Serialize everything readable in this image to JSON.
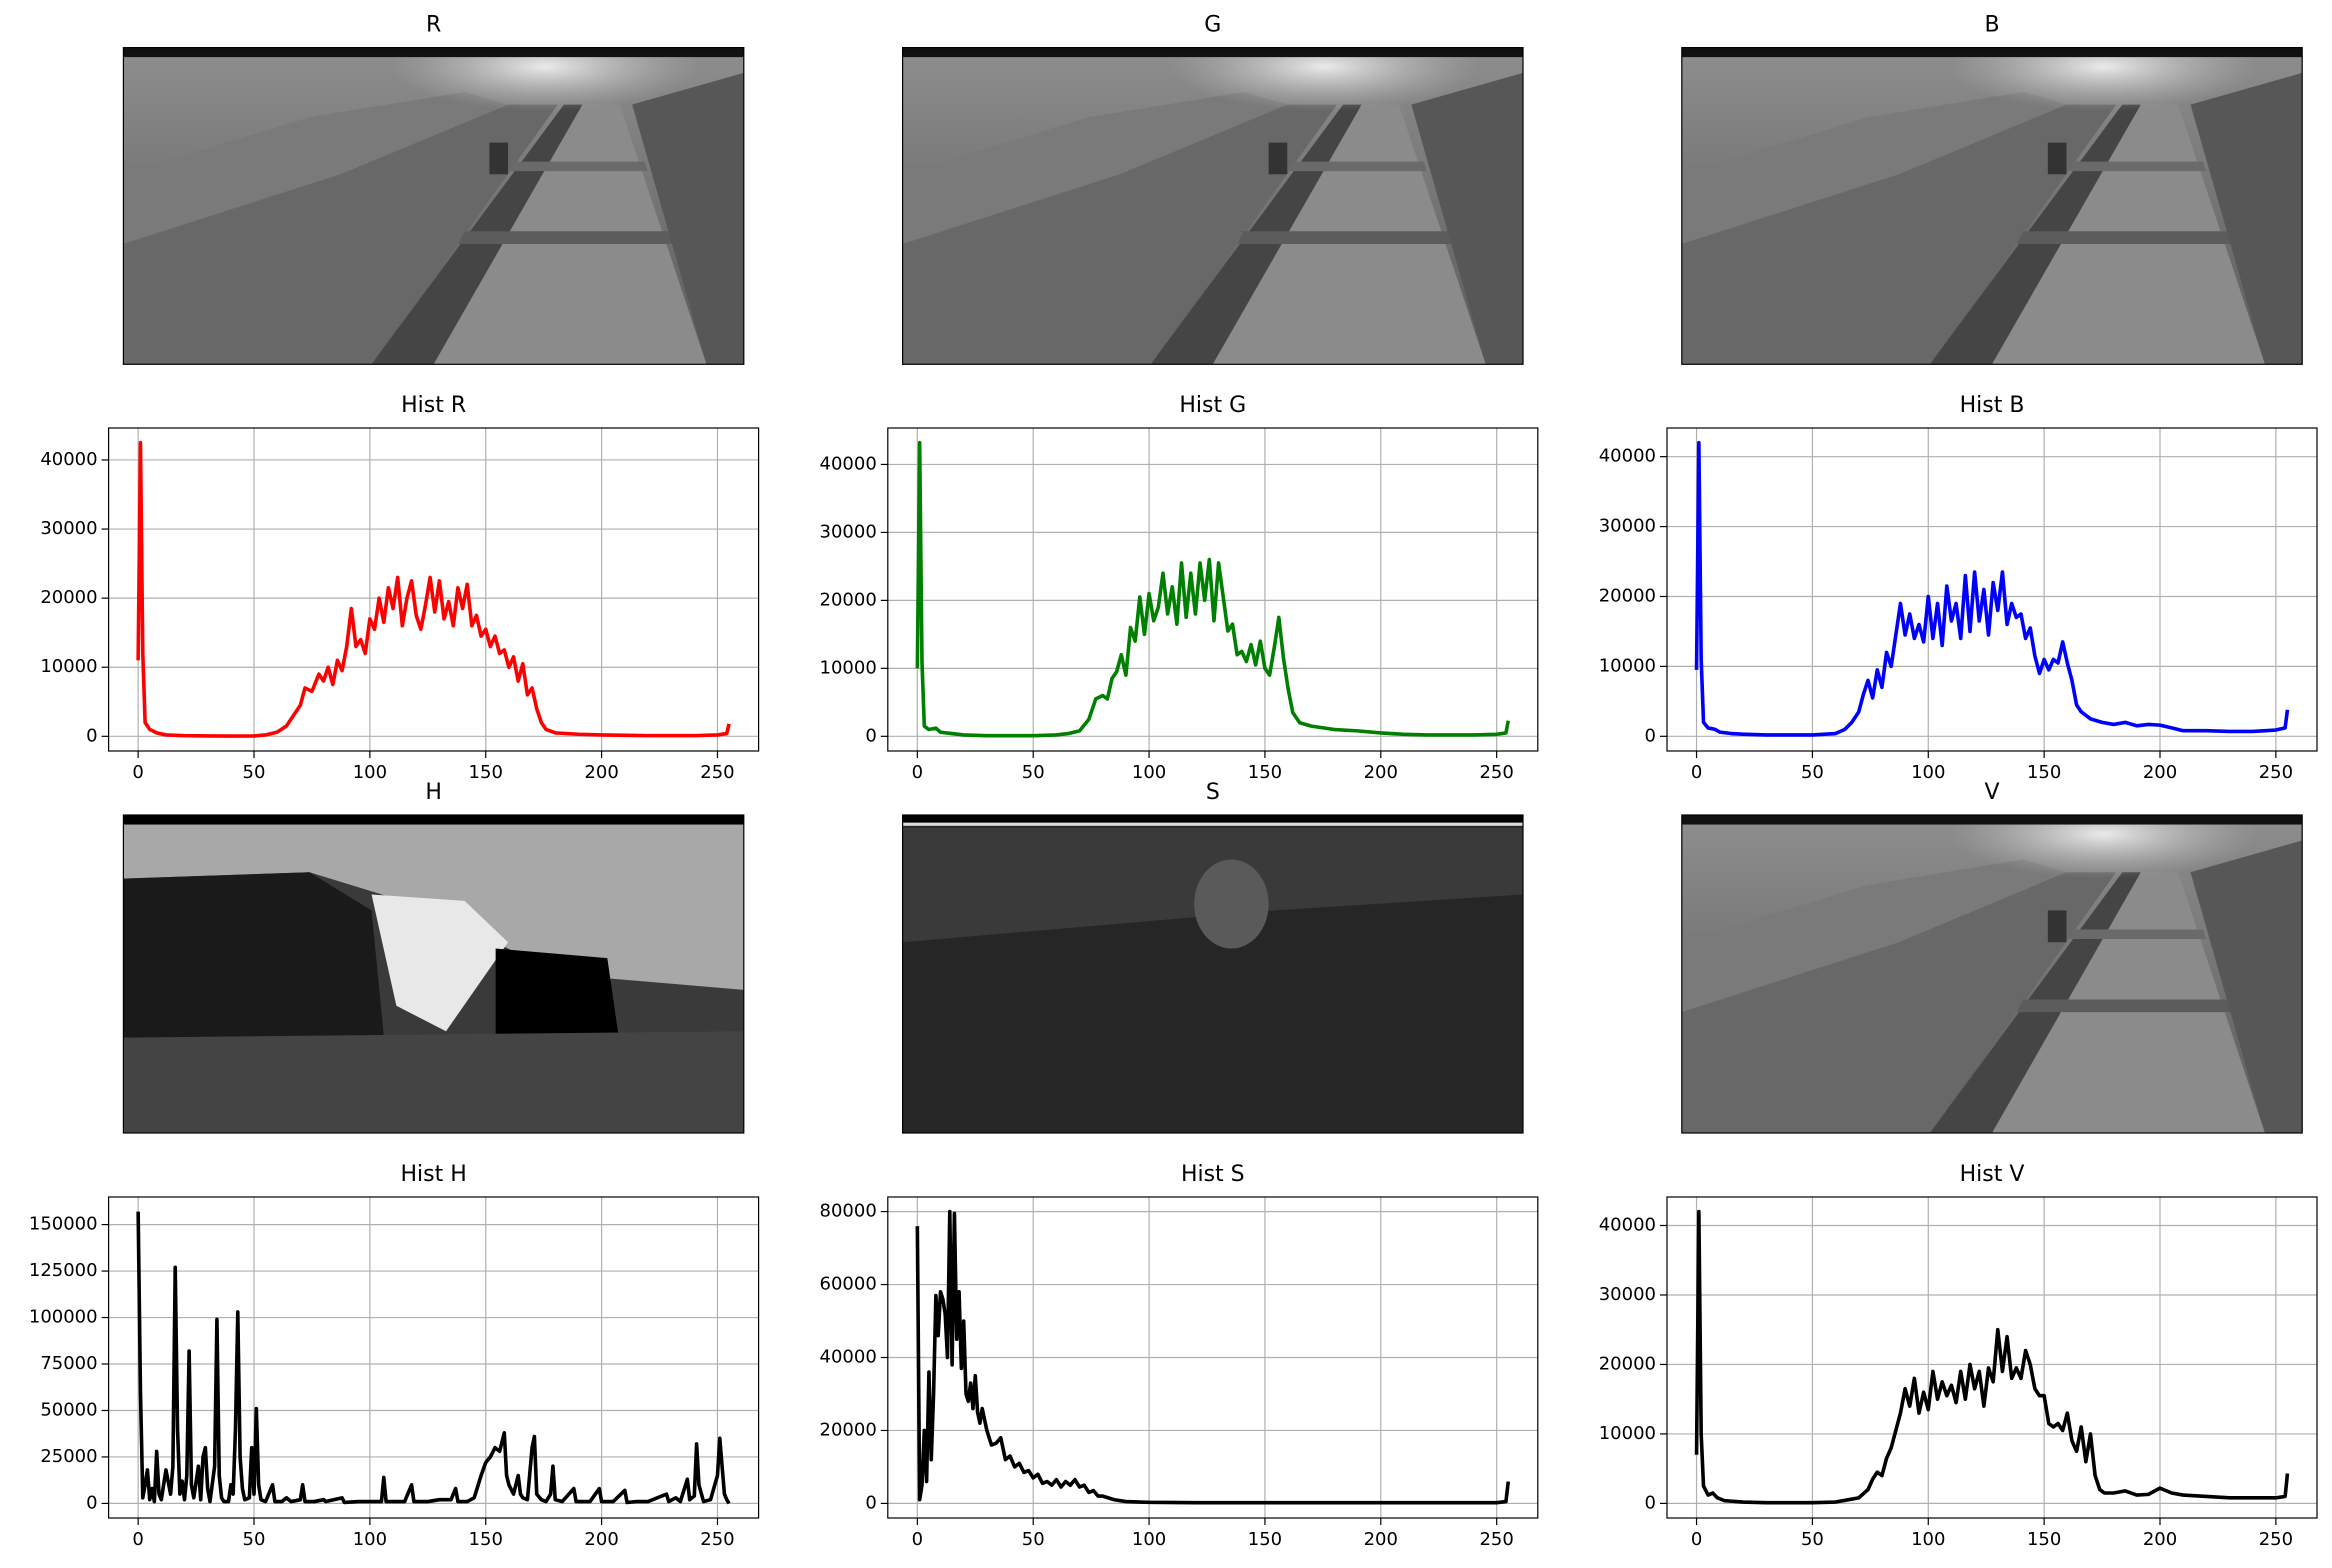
{
  "chart_data": [
    {
      "type": "image",
      "title": "R"
    },
    {
      "type": "image",
      "title": "G"
    },
    {
      "type": "image",
      "title": "B"
    },
    {
      "type": "line",
      "title": "Hist R",
      "color": "#ff0000",
      "grid": true,
      "xlim": [
        -12.75,
        267.75
      ],
      "ylim": [
        -2125,
        44625
      ],
      "xticks": [
        0,
        50,
        100,
        150,
        200,
        250
      ],
      "yticks": [
        0,
        10000,
        20000,
        30000,
        40000
      ],
      "x": [
        0,
        1,
        2,
        3,
        5,
        8,
        12,
        20,
        30,
        40,
        50,
        55,
        60,
        64,
        67,
        70,
        72,
        75,
        78,
        80,
        82,
        84,
        86,
        88,
        90,
        92,
        94,
        96,
        98,
        100,
        102,
        104,
        106,
        108,
        110,
        112,
        114,
        116,
        118,
        120,
        122,
        124,
        126,
        128,
        130,
        132,
        134,
        136,
        138,
        140,
        142,
        144,
        146,
        148,
        150,
        152,
        154,
        156,
        158,
        160,
        162,
        164,
        166,
        168,
        170,
        172,
        174,
        176,
        180,
        190,
        200,
        220,
        240,
        250,
        254,
        255
      ],
      "values": [
        11000,
        42500,
        12000,
        2000,
        1000,
        500,
        200,
        100,
        50,
        30,
        50,
        200,
        600,
        1500,
        3000,
        4500,
        7000,
        6500,
        9000,
        8000,
        10000,
        7500,
        11000,
        9500,
        13000,
        18500,
        13000,
        14000,
        12000,
        17000,
        15500,
        20000,
        16500,
        21500,
        18500,
        23000,
        16000,
        20000,
        22500,
        17500,
        15500,
        19000,
        23000,
        18000,
        22500,
        17000,
        19500,
        16000,
        21500,
        18500,
        22000,
        16000,
        17500,
        14500,
        15500,
        13000,
        14500,
        12000,
        12500,
        10000,
        11500,
        8000,
        10500,
        6000,
        7000,
        4000,
        2000,
        1000,
        500,
        300,
        200,
        100,
        100,
        200,
        400,
        1800
      ]
    },
    {
      "type": "line",
      "title": "Hist G",
      "color": "#008000",
      "grid": true,
      "xlim": [
        -12.75,
        267.75
      ],
      "ylim": [
        -2160,
        45360
      ],
      "xticks": [
        0,
        50,
        100,
        150,
        200,
        250
      ],
      "yticks": [
        0,
        10000,
        20000,
        30000,
        40000
      ],
      "x": [
        0,
        1,
        2,
        3,
        5,
        8,
        10,
        15,
        20,
        30,
        40,
        50,
        60,
        65,
        70,
        74,
        77,
        80,
        82,
        84,
        86,
        88,
        90,
        92,
        94,
        96,
        98,
        100,
        102,
        104,
        106,
        108,
        110,
        112,
        114,
        116,
        118,
        120,
        122,
        124,
        126,
        128,
        130,
        132,
        134,
        136,
        138,
        140,
        142,
        144,
        146,
        148,
        150,
        152,
        154,
        156,
        158,
        160,
        162,
        165,
        170,
        180,
        190,
        200,
        210,
        220,
        240,
        250,
        254,
        255
      ],
      "values": [
        10000,
        43200,
        11000,
        1500,
        1000,
        1200,
        600,
        400,
        200,
        100,
        100,
        100,
        200,
        400,
        800,
        2500,
        5500,
        6000,
        5500,
        8500,
        9500,
        12000,
        9000,
        16000,
        14000,
        20500,
        15000,
        21000,
        17000,
        19000,
        24000,
        18000,
        22000,
        16500,
        25500,
        17500,
        24000,
        18000,
        25500,
        20000,
        26000,
        17000,
        25500,
        20500,
        15500,
        16500,
        12000,
        12500,
        11000,
        13500,
        10500,
        14000,
        10000,
        9000,
        13000,
        17500,
        11500,
        7000,
        3500,
        2000,
        1500,
        1000,
        800,
        500,
        300,
        200,
        200,
        300,
        500,
        2300
      ]
    },
    {
      "type": "line",
      "title": "Hist B",
      "color": "#0000ff",
      "grid": true,
      "xlim": [
        -12.75,
        267.75
      ],
      "ylim": [
        -2100,
        44100
      ],
      "xticks": [
        0,
        50,
        100,
        150,
        200,
        250
      ],
      "yticks": [
        0,
        10000,
        20000,
        30000,
        40000
      ],
      "x": [
        0,
        1,
        2,
        3,
        5,
        8,
        10,
        15,
        20,
        30,
        40,
        50,
        60,
        64,
        67,
        70,
        72,
        74,
        76,
        78,
        80,
        82,
        84,
        86,
        88,
        90,
        92,
        94,
        96,
        98,
        100,
        102,
        104,
        106,
        108,
        110,
        112,
        114,
        116,
        118,
        120,
        122,
        124,
        126,
        128,
        130,
        132,
        134,
        136,
        138,
        140,
        142,
        144,
        146,
        148,
        150,
        152,
        154,
        156,
        158,
        160,
        162,
        164,
        166,
        170,
        175,
        180,
        185,
        190,
        195,
        200,
        205,
        210,
        220,
        230,
        240,
        250,
        254,
        255
      ],
      "values": [
        9500,
        42000,
        11000,
        2000,
        1200,
        1000,
        600,
        400,
        300,
        200,
        200,
        200,
        400,
        1000,
        2000,
        3500,
        6000,
        8000,
        5500,
        9500,
        7000,
        12000,
        10000,
        14500,
        19000,
        14500,
        17500,
        14000,
        16000,
        13500,
        20000,
        14000,
        19000,
        13000,
        21500,
        16500,
        19000,
        14000,
        23000,
        15000,
        23500,
        16500,
        21000,
        14500,
        22000,
        18000,
        23500,
        16000,
        19000,
        17000,
        17500,
        14000,
        15500,
        11500,
        9000,
        11000,
        9500,
        11000,
        10500,
        13500,
        10500,
        8000,
        4500,
        3500,
        2500,
        2000,
        1700,
        2000,
        1500,
        1700,
        1600,
        1200,
        800,
        800,
        700,
        700,
        900,
        1200,
        3800
      ]
    },
    {
      "type": "image",
      "title": "H"
    },
    {
      "type": "image",
      "title": "S"
    },
    {
      "type": "image",
      "title": "V"
    },
    {
      "type": "line",
      "title": "Hist H",
      "color": "#000000",
      "grid": true,
      "xlim": [
        -12.75,
        267.75
      ],
      "ylim": [
        -7850,
        164850
      ],
      "xticks": [
        0,
        50,
        100,
        150,
        200,
        250
      ],
      "yticks": [
        0,
        25000,
        50000,
        75000,
        100000,
        125000,
        150000
      ],
      "x": [
        0,
        1,
        2,
        3,
        4,
        5,
        6,
        7,
        8,
        9,
        10,
        12,
        14,
        15,
        16,
        17,
        18,
        19,
        20,
        21,
        22,
        23,
        24,
        26,
        27,
        28,
        29,
        30,
        31,
        33,
        34,
        35,
        36,
        37,
        39,
        40,
        41,
        42,
        43,
        44,
        45,
        46,
        48,
        49,
        50,
        51,
        52,
        53,
        55,
        58,
        59,
        62,
        64,
        66,
        70,
        71,
        72,
        76,
        80,
        81,
        88,
        89,
        95,
        100,
        105,
        106,
        107,
        112,
        115,
        118,
        119,
        125,
        130,
        135,
        137,
        138,
        142,
        145,
        148,
        150,
        152,
        154,
        156,
        158,
        159,
        160,
        162,
        164,
        165,
        166,
        168,
        170,
        171,
        172,
        174,
        176,
        178,
        179,
        180,
        183,
        188,
        189,
        192,
        195,
        199,
        200,
        205,
        210,
        211,
        215,
        220,
        228,
        229,
        232,
        234,
        237,
        238,
        240,
        241,
        242,
        244,
        247,
        250,
        251,
        252,
        253,
        254,
        255
      ],
      "values": [
        157000,
        60000,
        3000,
        10000,
        18000,
        2000,
        8000,
        1000,
        28000,
        5000,
        2000,
        18000,
        5000,
        20000,
        127000,
        40000,
        5000,
        12000,
        2000,
        15000,
        82000,
        10000,
        3000,
        20000,
        2000,
        25000,
        30000,
        8000,
        1000,
        20000,
        99000,
        15000,
        3000,
        1000,
        1000,
        10000,
        5000,
        40000,
        103000,
        25000,
        8000,
        2000,
        3000,
        30000,
        5000,
        51000,
        10000,
        2000,
        1000,
        10000,
        1000,
        1000,
        3000,
        1000,
        2000,
        10000,
        1000,
        1000,
        2000,
        1000,
        3000,
        500,
        1000,
        1000,
        1000,
        14000,
        1000,
        1000,
        1000,
        10000,
        1000,
        1000,
        2000,
        2000,
        8000,
        1000,
        1000,
        3000,
        15000,
        22000,
        25000,
        30000,
        28000,
        38000,
        15000,
        10000,
        5000,
        15000,
        5000,
        3000,
        2000,
        30000,
        36000,
        5000,
        2000,
        1000,
        5000,
        20000,
        2000,
        1000,
        8000,
        1000,
        1000,
        1000,
        8000,
        1000,
        1000,
        7000,
        500,
        1000,
        1000,
        5000,
        1000,
        3000,
        1000,
        13000,
        2000,
        4000,
        32000,
        10000,
        1000,
        2000,
        15000,
        35000,
        20000,
        5000,
        2000,
        0
      ]
    },
    {
      "type": "line",
      "title": "Hist S",
      "color": "#000000",
      "grid": true,
      "xlim": [
        -12.75,
        267.75
      ],
      "ylim": [
        -4000,
        84000
      ],
      "xticks": [
        0,
        50,
        100,
        150,
        200,
        250
      ],
      "yticks": [
        0,
        20000,
        40000,
        60000,
        80000
      ],
      "x": [
        0,
        1,
        2,
        3,
        4,
        5,
        6,
        7,
        8,
        9,
        10,
        11,
        12,
        13,
        14,
        15,
        16,
        17,
        18,
        19,
        20,
        21,
        22,
        23,
        24,
        25,
        26,
        27,
        28,
        30,
        32,
        34,
        36,
        38,
        40,
        42,
        44,
        46,
        48,
        50,
        52,
        54,
        56,
        58,
        60,
        62,
        64,
        66,
        68,
        70,
        72,
        74,
        76,
        78,
        80,
        85,
        90,
        100,
        120,
        150,
        200,
        250,
        254,
        255
      ],
      "values": [
        76000,
        1000,
        5000,
        20000,
        6000,
        36000,
        12000,
        30000,
        57000,
        46000,
        58000,
        56000,
        52000,
        40000,
        80000,
        38000,
        79500,
        45000,
        58000,
        37000,
        50000,
        30000,
        28000,
        33000,
        26000,
        35000,
        25000,
        22000,
        26000,
        20000,
        16000,
        16500,
        18000,
        12000,
        13000,
        10000,
        11000,
        8500,
        9000,
        7000,
        8000,
        5500,
        6000,
        5000,
        6500,
        4500,
        6000,
        5000,
        6500,
        4500,
        5000,
        3000,
        3500,
        2000,
        2000,
        1000,
        500,
        300,
        200,
        200,
        200,
        200,
        500,
        6000
      ]
    },
    {
      "type": "line",
      "title": "Hist V",
      "color": "#000000",
      "grid": true,
      "xlim": [
        -12.75,
        267.75
      ],
      "ylim": [
        -2100,
        44100
      ],
      "xticks": [
        0,
        50,
        100,
        150,
        200,
        250
      ],
      "yticks": [
        0,
        10000,
        20000,
        30000,
        40000
      ],
      "x": [
        0,
        1,
        2,
        3,
        5,
        7,
        9,
        12,
        20,
        30,
        40,
        50,
        60,
        65,
        70,
        74,
        76,
        78,
        80,
        82,
        84,
        86,
        88,
        90,
        92,
        94,
        96,
        98,
        100,
        102,
        104,
        106,
        108,
        110,
        112,
        114,
        116,
        118,
        120,
        122,
        124,
        126,
        128,
        130,
        132,
        134,
        136,
        138,
        140,
        142,
        144,
        146,
        148,
        150,
        152,
        154,
        156,
        158,
        160,
        162,
        164,
        166,
        168,
        170,
        172,
        174,
        176,
        180,
        185,
        190,
        195,
        200,
        205,
        210,
        220,
        230,
        240,
        250,
        254,
        255
      ],
      "values": [
        7000,
        42000,
        10000,
        2500,
        1200,
        1500,
        800,
        400,
        200,
        100,
        100,
        100,
        200,
        500,
        800,
        2000,
        3500,
        4500,
        4000,
        6500,
        8000,
        10500,
        13000,
        16500,
        14000,
        18000,
        13000,
        16000,
        13500,
        19000,
        15000,
        17500,
        15500,
        17000,
        14500,
        19000,
        15000,
        20000,
        16500,
        19000,
        14000,
        19500,
        17500,
        25000,
        19000,
        24000,
        18000,
        19500,
        18000,
        22000,
        20000,
        16500,
        15500,
        15500,
        11500,
        11000,
        11500,
        10500,
        13000,
        9000,
        7500,
        11000,
        6000,
        10000,
        4000,
        2000,
        1500,
        1500,
        1800,
        1200,
        1300,
        2200,
        1500,
        1200,
        1000,
        800,
        800,
        800,
        1000,
        4300
      ]
    }
  ]
}
